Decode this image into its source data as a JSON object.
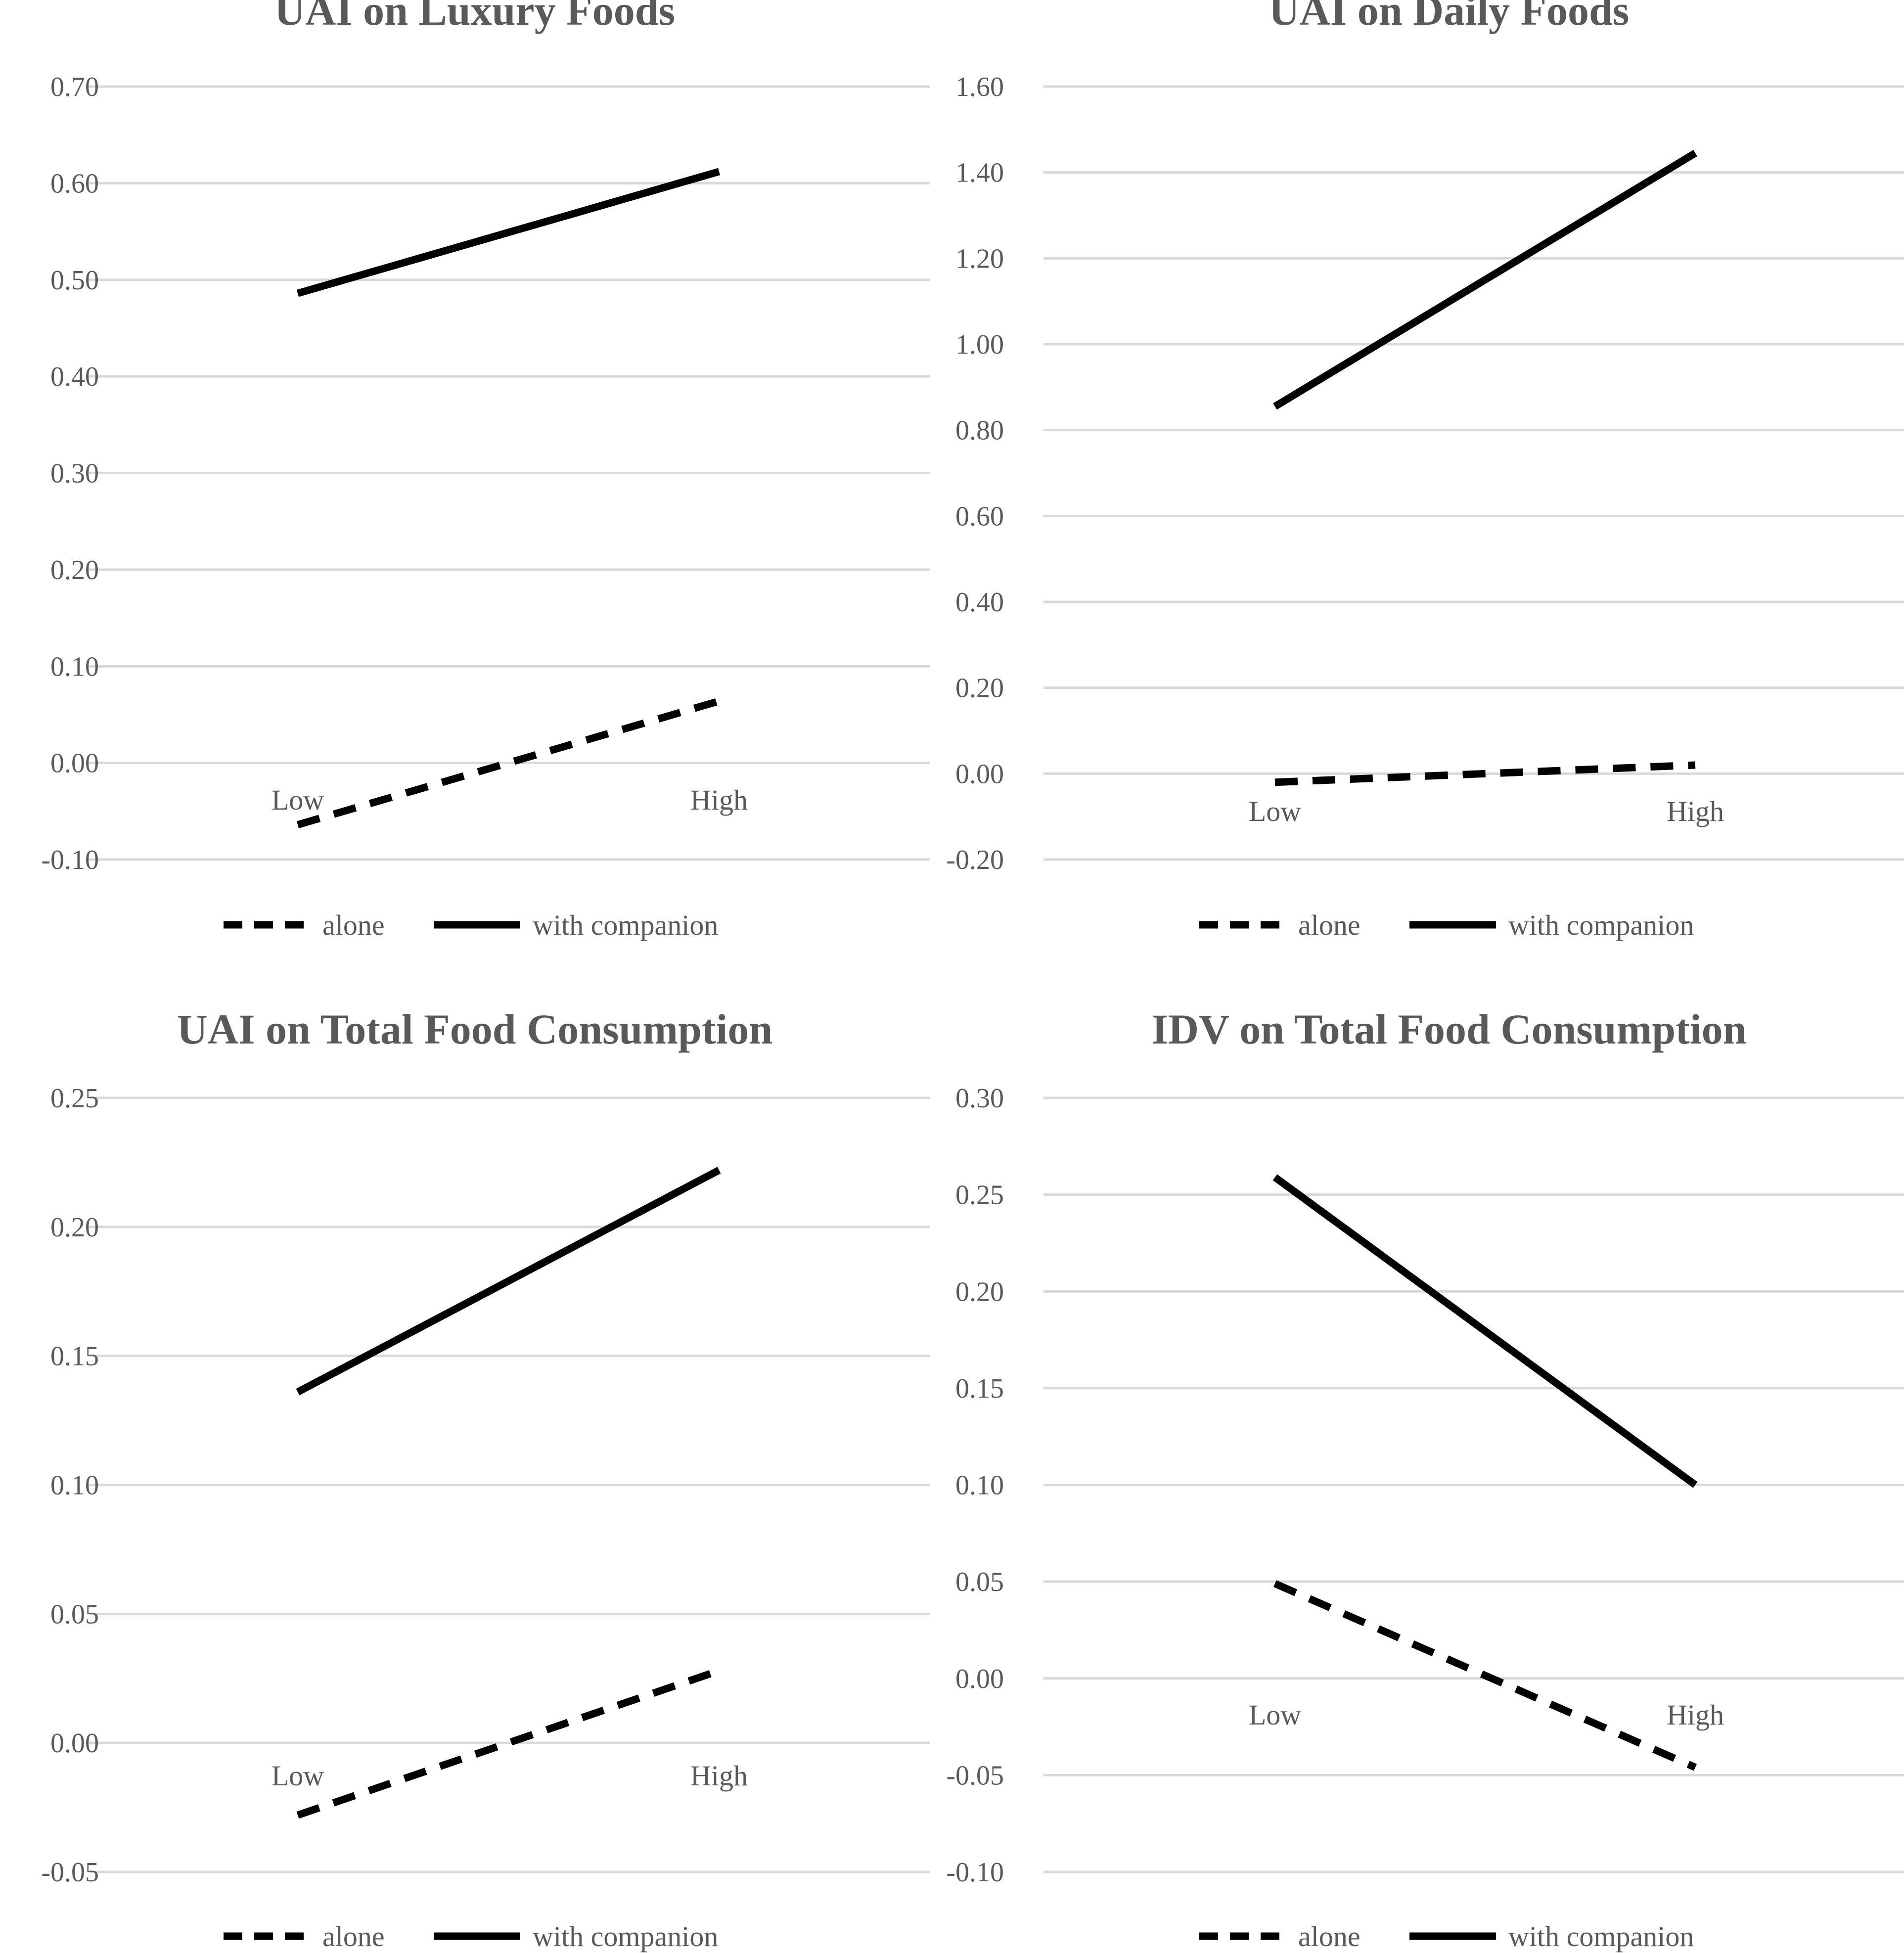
{
  "chart_data": [
    {
      "type": "line",
      "title": "UAI  on Luxury Foods",
      "categories": [
        "Low",
        "High"
      ],
      "yticks": [
        "0.70",
        "0.60",
        "0.50",
        "0.40",
        "0.30",
        "0.20",
        "0.10",
        "0.00",
        "-0.10"
      ],
      "ylim": [
        -0.1,
        0.7
      ],
      "series": [
        {
          "name": "alone",
          "style": "dashed",
          "values": [
            -0.064,
            0.064
          ]
        },
        {
          "name": "with companion",
          "style": "solid",
          "values": [
            0.486,
            0.612
          ]
        }
      ]
    },
    {
      "type": "line",
      "title": "UAI  on Daily Foods",
      "categories": [
        "Low",
        "High"
      ],
      "yticks": [
        "1.60",
        "1.40",
        "1.20",
        "1.00",
        "0.80",
        "0.60",
        "0.40",
        "0.20",
        "0.00",
        "-0.20"
      ],
      "ylim": [
        -0.2,
        1.6
      ],
      "series": [
        {
          "name": "alone",
          "style": "dashed",
          "values": [
            -0.02,
            0.02
          ]
        },
        {
          "name": "with companion",
          "style": "solid",
          "values": [
            0.855,
            1.445
          ]
        }
      ]
    },
    {
      "type": "line",
      "title": "UAI  on Total Food Consumption",
      "categories": [
        "Low",
        "High"
      ],
      "yticks": [
        "0.25",
        "0.20",
        "0.15",
        "0.10",
        "0.05",
        "0.00",
        "-0.05"
      ],
      "ylim": [
        -0.05,
        0.25
      ],
      "series": [
        {
          "name": "alone",
          "style": "dashed",
          "values": [
            -0.028,
            0.028
          ]
        },
        {
          "name": "with companion",
          "style": "solid",
          "values": [
            0.136,
            0.222
          ]
        }
      ]
    },
    {
      "type": "line",
      "title": "IDV  on Total Food Consumption",
      "categories": [
        "Low",
        "High"
      ],
      "yticks": [
        "0.30",
        "0.25",
        "0.20",
        "0.15",
        "0.10",
        "0.05",
        "0.00",
        "-0.05",
        "-0.10"
      ],
      "ylim": [
        -0.1,
        0.3
      ],
      "series": [
        {
          "name": "alone",
          "style": "dashed",
          "values": [
            0.049,
            -0.046
          ]
        },
        {
          "name": "with companion",
          "style": "solid",
          "values": [
            0.259,
            0.1
          ]
        }
      ]
    }
  ]
}
